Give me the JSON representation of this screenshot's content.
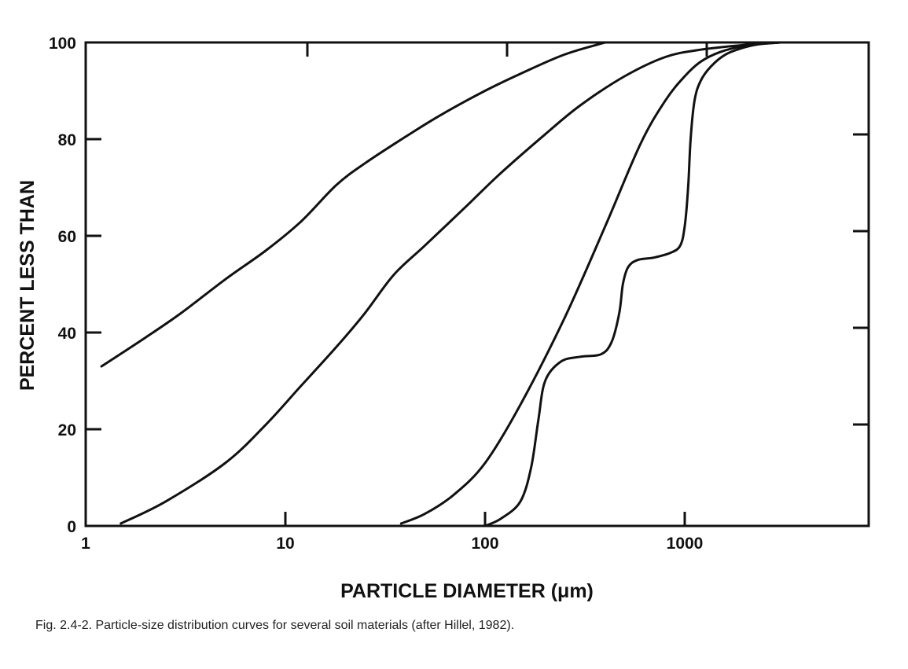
{
  "caption": "Fig. 2.4-2. Particle-size distribution curves for several soil materials (after Hillel, 1982).",
  "chart_data": {
    "type": "line",
    "title": "",
    "xlabel": "PARTICLE DIAMETER (μm)",
    "ylabel": "PERCENT LESS THAN",
    "xscale": "log",
    "xlim": [
      1,
      10000
    ],
    "ylim": [
      0,
      100
    ],
    "x_ticks": [
      1,
      10,
      100,
      1000
    ],
    "x_tick_labels": [
      "1",
      "10",
      "100",
      "1000"
    ],
    "y_ticks": [
      0,
      20,
      40,
      60,
      80,
      100
    ],
    "y_tick_labels": [
      "0",
      "20",
      "40",
      "60",
      "80",
      "100"
    ],
    "grid": false,
    "legend": "none",
    "line_color": "#111111",
    "series": [
      {
        "x": [
          1.2,
          2,
          3,
          5,
          8,
          12,
          18,
          25,
          40,
          60,
          100,
          150,
          250,
          400
        ],
        "y": [
          33,
          39,
          44,
          51,
          57,
          63,
          70.5,
          75,
          80.5,
          85,
          90,
          93.5,
          97.5,
          100
        ]
      },
      {
        "x": [
          1.5,
          2.5,
          5,
          8,
          12,
          18,
          25,
          35,
          50,
          80,
          120,
          200,
          300,
          500,
          800,
          1200,
          2000,
          3000
        ],
        "y": [
          0.5,
          5,
          13,
          21,
          29,
          37,
          44,
          52,
          58,
          66,
          73,
          81,
          87,
          93,
          97,
          98.5,
          99.5,
          100
        ]
      },
      {
        "x": [
          38,
          50,
          70,
          100,
          150,
          250,
          400,
          600,
          800,
          1000,
          1200,
          1500,
          2000,
          3000
        ],
        "y": [
          0.5,
          2.5,
          6.5,
          13,
          25,
          43,
          62,
          79,
          88,
          93,
          96,
          98,
          99.3,
          100
        ]
      },
      {
        "x": [
          100,
          120,
          150,
          170,
          185,
          200,
          240,
          300,
          380,
          430,
          470,
          490,
          520,
          580,
          700,
          850,
          950,
          1000,
          1040,
          1070,
          1120,
          1200,
          1350,
          1600,
          2000,
          2500,
          3000
        ],
        "y": [
          0,
          1.5,
          5,
          12,
          22,
          30,
          34,
          35,
          35.5,
          38,
          44,
          50,
          53.5,
          55,
          55.5,
          56.5,
          58,
          62,
          70,
          80,
          88,
          92,
          95,
          97.5,
          99,
          99.8,
          100
        ]
      }
    ]
  }
}
